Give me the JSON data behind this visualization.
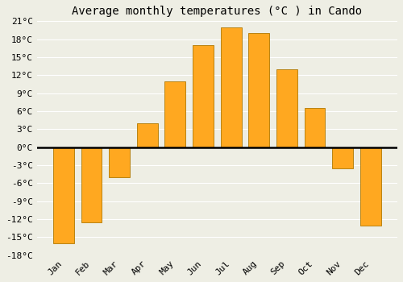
{
  "title": "Average monthly temperatures (°C ) in Cando",
  "months": [
    "Jan",
    "Feb",
    "Mar",
    "Apr",
    "May",
    "Jun",
    "Jul",
    "Aug",
    "Sep",
    "Oct",
    "Nov",
    "Dec"
  ],
  "values": [
    -16,
    -12.5,
    -5,
    4,
    11,
    17,
    20,
    19,
    13,
    6.5,
    -3.5,
    -13
  ],
  "bar_color": "#FFA820",
  "bar_edge_color": "#B07800",
  "ylim": [
    -18,
    21
  ],
  "yticks": [
    -18,
    -15,
    -12,
    -9,
    -6,
    -3,
    0,
    3,
    6,
    9,
    12,
    15,
    18,
    21
  ],
  "ytick_labels": [
    "-18°C",
    "-15°C",
    "-12°C",
    "-9°C",
    "-6°C",
    "-3°C",
    "0°C",
    "3°C",
    "6°C",
    "9°C",
    "12°C",
    "15°C",
    "18°C",
    "21°C"
  ],
  "background_color": "#eeeee4",
  "grid_color": "#ffffff",
  "zero_line_color": "#000000",
  "title_fontsize": 10,
  "tick_fontsize": 8,
  "bar_width": 0.75,
  "figsize": [
    5.0,
    3.5
  ],
  "dpi": 100
}
